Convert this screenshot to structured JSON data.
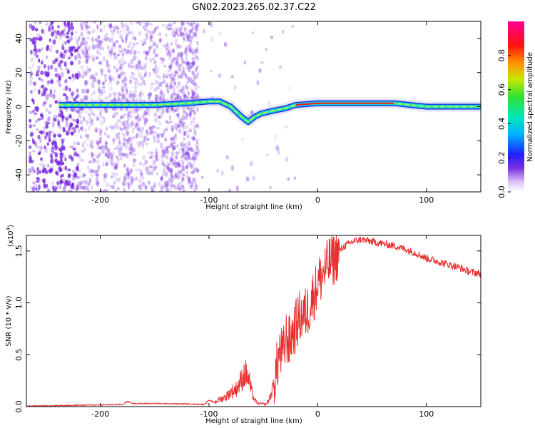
{
  "title": "GN02.2023.265.02.37.C22",
  "colors": {
    "snr_line": "#e83030",
    "scatter": "#7a2ee0",
    "track_outer": "#1a2ad8",
    "track_mid": "#30e0b0",
    "track_inner": "#e82020"
  },
  "chart_data": [
    {
      "type": "heatmap",
      "title": "",
      "xlabel": "Height of straight line (km)",
      "ylabel": "Frequency (Hz)",
      "xlim": [
        -268,
        150
      ],
      "ylim": [
        -50,
        50
      ],
      "x_ticks": [
        -200,
        -100,
        0,
        100
      ],
      "y_ticks": [
        -40,
        -20,
        0,
        20,
        40
      ],
      "colorbar": {
        "label": "Normalized spectral amplitude",
        "range": [
          0.0,
          1.0
        ],
        "ticks": [
          "0.0",
          "0.2",
          "0.4",
          "0.6",
          "0.8"
        ],
        "colormap": "rainbow"
      },
      "dominant_frequency_track": {
        "x": [
          -238,
          -200,
          -150,
          -120,
          -100,
          -90,
          -80,
          -70,
          -64,
          -58,
          -52,
          -45,
          -38,
          -30,
          -20,
          0,
          40,
          70,
          85,
          100,
          120,
          150
        ],
        "y": [
          1,
          1,
          1,
          2,
          3,
          3,
          0,
          -6,
          -9,
          -6,
          -4,
          -3,
          -2,
          -1,
          1,
          2,
          2,
          2,
          1,
          0,
          0,
          0
        ]
      }
    },
    {
      "type": "line",
      "title": "",
      "xlabel": "Height of straight line (km)",
      "ylabel": "SNR (10 * v/v)",
      "y_multiplier": "(x10",
      "y_multiplier_exp": "4",
      "xlim": [
        -268,
        150
      ],
      "ylim": [
        0,
        16500
      ],
      "x_ticks": [
        -200,
        -100,
        0,
        100
      ],
      "y_ticks": [
        "0.0",
        "0.5",
        "1.0",
        "1.5"
      ],
      "series": [
        {
          "x": [
            -268,
            -240,
            -210,
            -180,
            -175,
            -170,
            -150,
            -120,
            -105,
            -100,
            -95,
            -90,
            -85,
            -80,
            -75,
            -70,
            -67,
            -64,
            -61,
            -58,
            -55,
            -52,
            -48,
            -45,
            -42,
            -38,
            -35,
            -32,
            -29,
            -26,
            -23,
            -20,
            -17,
            -14,
            -11,
            -8,
            -5,
            -2,
            0,
            5,
            10,
            15,
            20,
            25,
            30,
            35,
            40,
            45,
            50,
            60,
            70,
            80,
            90,
            100,
            110,
            120,
            130,
            140,
            150
          ],
          "values": [
            50,
            100,
            150,
            200,
            500,
            300,
            300,
            250,
            200,
            600,
            400,
            700,
            900,
            1400,
            1700,
            2600,
            3200,
            2800,
            1500,
            600,
            300,
            300,
            200,
            600,
            1500,
            3500,
            5300,
            5000,
            6700,
            6200,
            7200,
            7800,
            8600,
            8800,
            9000,
            9500,
            10500,
            11200,
            12000,
            12800,
            13800,
            14200,
            15000,
            15500,
            15800,
            16000,
            16100,
            16000,
            15900,
            15700,
            15500,
            15200,
            14800,
            14300,
            14000,
            13700,
            13400,
            13000,
            12800
          ]
        }
      ]
    }
  ]
}
